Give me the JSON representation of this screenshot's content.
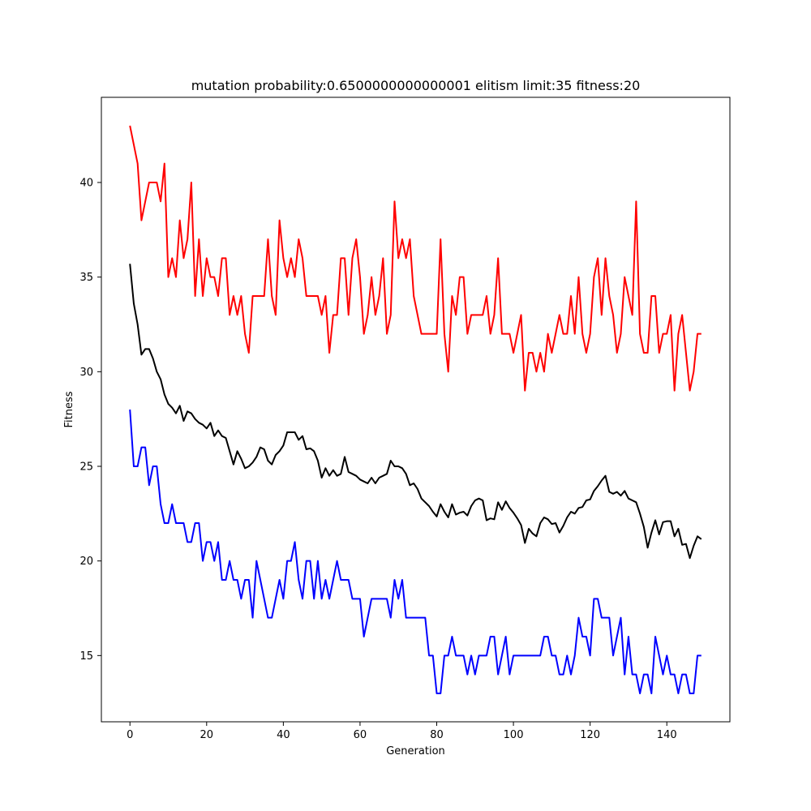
{
  "chart_data": {
    "type": "line",
    "title": "mutation probability:0.6500000000000001 elitism limit:35 fitness:20",
    "xlabel": "Generation",
    "ylabel": "Fitness",
    "xlim": [
      -7.45,
      156.45
    ],
    "ylim": [
      11.5,
      44.5
    ],
    "xticks": [
      0,
      20,
      40,
      60,
      80,
      100,
      120,
      140
    ],
    "yticks": [
      15,
      20,
      25,
      30,
      35,
      40
    ],
    "grid": false,
    "legend": "none",
    "series": [
      {
        "color": "#ff0000",
        "values": [
          43,
          42,
          41,
          38,
          39,
          40,
          40,
          40,
          39,
          41,
          35,
          36,
          35,
          38,
          36,
          37,
          40,
          34,
          37,
          34,
          36,
          35,
          35,
          34,
          36,
          36,
          33,
          34,
          33,
          34,
          32,
          31,
          34,
          34,
          34,
          34,
          37,
          34,
          33,
          38,
          36,
          35,
          36,
          35,
          37,
          36,
          34,
          34,
          34,
          34,
          33,
          34,
          31,
          33,
          33,
          36,
          36,
          33,
          36,
          37,
          35,
          32,
          33,
          35,
          33,
          34,
          36,
          32,
          33,
          39,
          36,
          37,
          36,
          37,
          34,
          33,
          32,
          32,
          32,
          32,
          32,
          37,
          32,
          30,
          34,
          33,
          35,
          35,
          32,
          33,
          33,
          33,
          33,
          34,
          32,
          33,
          36,
          32,
          32,
          32,
          31,
          32,
          33,
          29,
          31,
          31,
          30,
          31,
          30,
          32,
          31,
          32,
          33,
          32,
          32,
          34,
          32,
          35,
          32,
          31,
          32,
          35,
          36,
          33,
          36,
          34,
          33,
          31,
          32,
          35,
          34,
          33,
          39,
          32,
          31,
          31,
          34,
          34,
          31,
          32,
          32,
          33,
          29,
          32,
          33,
          31,
          29,
          30,
          32,
          32
        ]
      },
      {
        "color": "#000000",
        "values": [
          35.7,
          33.6,
          32.5,
          30.9,
          31.2,
          31.2,
          30.7,
          30.0,
          29.6,
          28.8,
          28.3,
          28.1,
          27.8,
          28.2,
          27.4,
          27.9,
          27.8,
          27.5,
          27.3,
          27.2,
          27.0,
          27.3,
          26.6,
          26.9,
          26.6,
          26.5,
          25.8,
          25.1,
          25.8,
          25.4,
          24.9,
          25.0,
          25.2,
          25.5,
          26.0,
          25.9,
          25.3,
          25.1,
          25.6,
          25.8,
          26.1,
          26.8,
          26.8,
          26.8,
          26.4,
          26.6,
          25.9,
          25.95,
          25.8,
          25.3,
          24.4,
          24.9,
          24.5,
          24.8,
          24.5,
          24.6,
          25.5,
          24.7,
          24.6,
          24.5,
          24.3,
          24.2,
          24.1,
          24.4,
          24.1,
          24.4,
          24.5,
          24.6,
          25.3,
          25.0,
          25.0,
          24.9,
          24.6,
          24.0,
          24.1,
          23.8,
          23.3,
          23.1,
          22.9,
          22.6,
          22.35,
          23.0,
          22.6,
          22.3,
          23.0,
          22.45,
          22.55,
          22.6,
          22.4,
          22.9,
          23.2,
          23.3,
          23.2,
          22.15,
          22.25,
          22.2,
          23.1,
          22.7,
          23.15,
          22.8,
          22.55,
          22.25,
          21.9,
          20.95,
          21.7,
          21.45,
          21.3,
          22.0,
          22.3,
          22.2,
          21.95,
          22.0,
          21.5,
          21.85,
          22.3,
          22.6,
          22.5,
          22.8,
          22.85,
          23.2,
          23.25,
          23.7,
          23.95,
          24.25,
          24.5,
          23.65,
          23.55,
          23.65,
          23.45,
          23.7,
          23.3,
          23.2,
          23.1,
          22.5,
          21.8,
          20.7,
          21.5,
          22.15,
          21.4,
          22.05,
          22.1,
          22.1,
          21.3,
          21.7,
          20.85,
          20.9,
          20.15,
          20.8,
          21.3,
          21.15
        ]
      },
      {
        "color": "#0000ff",
        "values": [
          28,
          25,
          25,
          26,
          26,
          24,
          25,
          25,
          23,
          22,
          22,
          23,
          22,
          22,
          22,
          21,
          21,
          22,
          22,
          20,
          21,
          21,
          20,
          21,
          19,
          19,
          20,
          19,
          19,
          18,
          19,
          19,
          17,
          20,
          19,
          18,
          17,
          17,
          18,
          19,
          18,
          20,
          20,
          21,
          19,
          18,
          20,
          20,
          18,
          20,
          18,
          19,
          18,
          19,
          20,
          19,
          19,
          19,
          18,
          18,
          18,
          16,
          17,
          18,
          18,
          18,
          18,
          18,
          17,
          19,
          18,
          19,
          17,
          17,
          17,
          17,
          17,
          17,
          15,
          15,
          13,
          13,
          15,
          15,
          16,
          15,
          15,
          15,
          14,
          15,
          14,
          15,
          15,
          15,
          16,
          16,
          14,
          15,
          16,
          14,
          15,
          15,
          15,
          15,
          15,
          15,
          15,
          15,
          16,
          16,
          15,
          15,
          14,
          14,
          15,
          14,
          15,
          17,
          16,
          16,
          15,
          18,
          18,
          17,
          17,
          17,
          15,
          16,
          17,
          14,
          16,
          14,
          14,
          13,
          14,
          14,
          13,
          16,
          15,
          14,
          15,
          14,
          14,
          13,
          14,
          14,
          13,
          13,
          15,
          15
        ]
      }
    ]
  }
}
